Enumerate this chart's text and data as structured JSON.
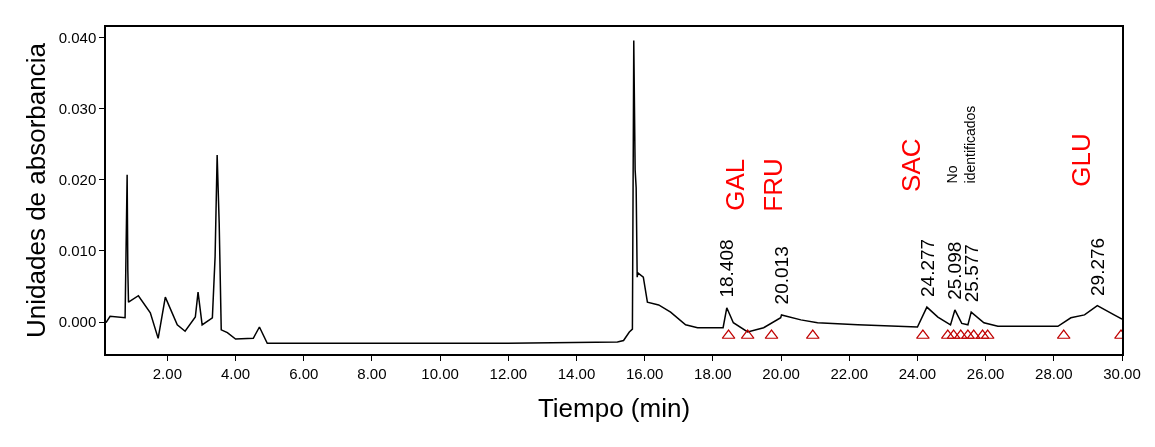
{
  "chart_data": {
    "type": "line",
    "xlabel": "Tiempo (min)",
    "ylabel": "Unidades de absorbancia",
    "xlim": [
      0.2,
      30.0
    ],
    "ylim": [
      -0.0045,
      0.0415
    ],
    "xticks": [
      {
        "value": 2,
        "label": "2.00"
      },
      {
        "value": 4,
        "label": "4.00"
      },
      {
        "value": 6,
        "label": "6.00"
      },
      {
        "value": 8,
        "label": "8.00"
      },
      {
        "value": 10,
        "label": "10.00"
      },
      {
        "value": 12,
        "label": "12.00"
      },
      {
        "value": 14,
        "label": "14.00"
      },
      {
        "value": 16,
        "label": "16.00"
      },
      {
        "value": 18,
        "label": "18.00"
      },
      {
        "value": 20,
        "label": "20.00"
      },
      {
        "value": 22,
        "label": "22.00"
      },
      {
        "value": 24,
        "label": "24.00"
      },
      {
        "value": 26,
        "label": "26.00"
      },
      {
        "value": 28,
        "label": "28.00"
      },
      {
        "value": 30,
        "label": "30.00"
      }
    ],
    "yticks": [
      {
        "value": 0,
        "label": "0.000"
      },
      {
        "value": 0.01,
        "label": "0.010"
      },
      {
        "value": 0.02,
        "label": "0.020"
      },
      {
        "value": 0.03,
        "label": "0.030"
      },
      {
        "value": 0.04,
        "label": "0.040"
      }
    ],
    "series": [
      {
        "color": "#000000",
        "marker": "none",
        "x": [
          0.2,
          0.32,
          0.76,
          0.82,
          0.84,
          0.86,
          1.15,
          1.5,
          1.73,
          1.94,
          2.29,
          2.52,
          2.82,
          2.9,
          3.02,
          3.32,
          3.4,
          3.46,
          3.52,
          3.58,
          3.76,
          4.0,
          4.52,
          4.7,
          4.93,
          8.0,
          12.0,
          15.2,
          15.38,
          15.55,
          15.64,
          15.68,
          15.72,
          15.75,
          15.78,
          15.8,
          15.96,
          16.08,
          16.41,
          16.76,
          17.2,
          17.55,
          18.3,
          18.408,
          18.6,
          19.02,
          19.49,
          19.99,
          20.013,
          20.58,
          21.07,
          22.25,
          24.0,
          24.277,
          24.6,
          24.97,
          25.098,
          25.3,
          25.48,
          25.577,
          25.95,
          26.36,
          28.12,
          28.5,
          28.9,
          29.276,
          29.77,
          30.0
        ],
        "values": [
          -0.0001,
          0.0008,
          0.0006,
          0.0207,
          0.0073,
          0.0028,
          0.0037,
          0.0013,
          -0.0023,
          0.0035,
          -0.0004,
          -0.0013,
          0.0007,
          0.0042,
          -0.0004,
          0.0006,
          0.0092,
          0.0235,
          0.0139,
          -0.0011,
          -0.0015,
          -0.0024,
          -0.0023,
          -0.0007,
          -0.003,
          -0.003,
          -0.003,
          -0.0028,
          -0.0026,
          -0.0014,
          -0.001,
          0.0396,
          0.0214,
          0.0189,
          0.0063,
          0.0069,
          0.0063,
          0.0028,
          0.0024,
          0.0014,
          -0.0004,
          -0.0008,
          -0.0008,
          0.002,
          -0.0001,
          -0.0014,
          -0.0008,
          0.0006,
          0.001,
          0.0003,
          -0.0001,
          -0.0004,
          -0.0007,
          0.0021,
          0.0007,
          -0.0004,
          0.0017,
          -0.0002,
          -0.0004,
          0.0014,
          -0.0001,
          -0.0006,
          -0.0006,
          0.0006,
          0.001,
          0.0023,
          0.001,
          0.0004
        ]
      },
      {
        "type": "scatter",
        "color": "#c00000",
        "marker": "triangle",
        "x": [
          18.46,
          19.02,
          19.72,
          20.93,
          24.16,
          24.89,
          25.06,
          25.27,
          25.48,
          25.65,
          25.91,
          26.06,
          28.29,
          29.97
        ],
        "values": [
          -0.0019,
          -0.0019,
          -0.0019,
          -0.0019,
          -0.0019,
          -0.0019,
          -0.0019,
          -0.0019,
          -0.0019,
          -0.0019,
          -0.0019,
          -0.0019,
          -0.0019,
          -0.0019
        ]
      }
    ],
    "annotations": [
      {
        "text": "18.408",
        "x": 18.408,
        "y": 0.002
      },
      {
        "text": "20.013",
        "x": 20.013,
        "y": 0.001
      },
      {
        "text": "24.277",
        "x": 24.277,
        "y": 0.0021
      },
      {
        "text": "25.098",
        "x": 25.098,
        "y": 0.0017
      },
      {
        "text": "25.577",
        "x": 25.577,
        "y": 0.0014
      },
      {
        "text": "29.276",
        "x": 29.276,
        "y": 0.0023
      },
      "GAL",
      "FRU",
      "SAC",
      "GLU",
      "No\nidentificados"
    ]
  }
}
